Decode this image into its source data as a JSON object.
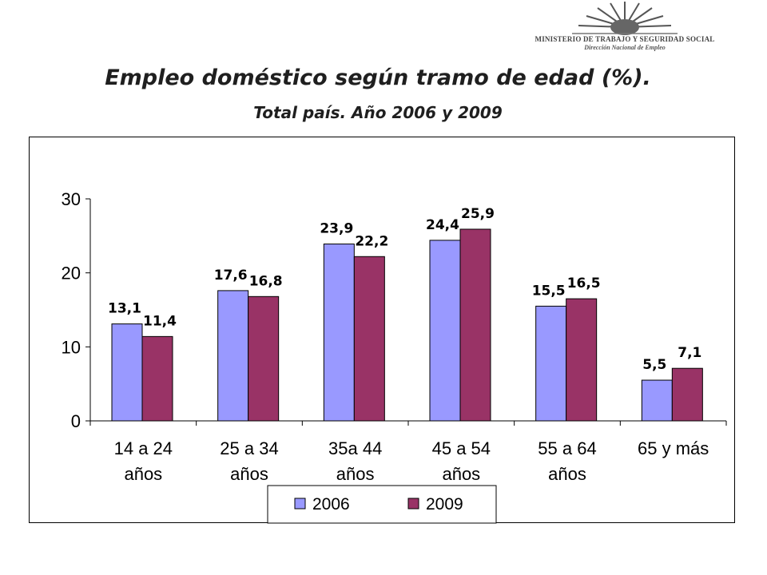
{
  "header": {
    "logo_ministry": "MINISTERIO DE TRABAJO Y SEGURIDAD SOCIAL",
    "logo_unit": "Dirección Nacional de Empleo"
  },
  "chart_data": {
    "type": "bar",
    "title": "Empleo doméstico según tramo de edad (%).",
    "subtitle": "Total país. Año 2006 y 2009",
    "xlabel": "",
    "ylabel": "",
    "ylim": [
      0,
      30
    ],
    "yticks": [
      "0",
      "10",
      "20",
      "30"
    ],
    "grid": false,
    "legend_position": "bottom",
    "categories": [
      [
        "14 a 24",
        "años"
      ],
      [
        "25 a 34",
        "años"
      ],
      [
        "35a 44",
        "años"
      ],
      [
        "45 a 54",
        "años"
      ],
      [
        "55 a 64",
        "años"
      ],
      [
        "65 y más"
      ]
    ],
    "series": [
      {
        "name": "2006",
        "color": "#9999ff",
        "values": [
          13.1,
          17.6,
          23.9,
          24.4,
          15.5,
          5.5
        ],
        "labels": [
          "13,1",
          "17,6",
          "23,9",
          "24,4",
          "15,5",
          "5,5"
        ]
      },
      {
        "name": "2009",
        "color": "#993366",
        "values": [
          11.4,
          16.8,
          22.2,
          25.9,
          16.5,
          7.1
        ],
        "labels": [
          "11,4",
          "16,8",
          "22,2",
          "25,9",
          "16,5",
          "7,1"
        ]
      }
    ]
  }
}
